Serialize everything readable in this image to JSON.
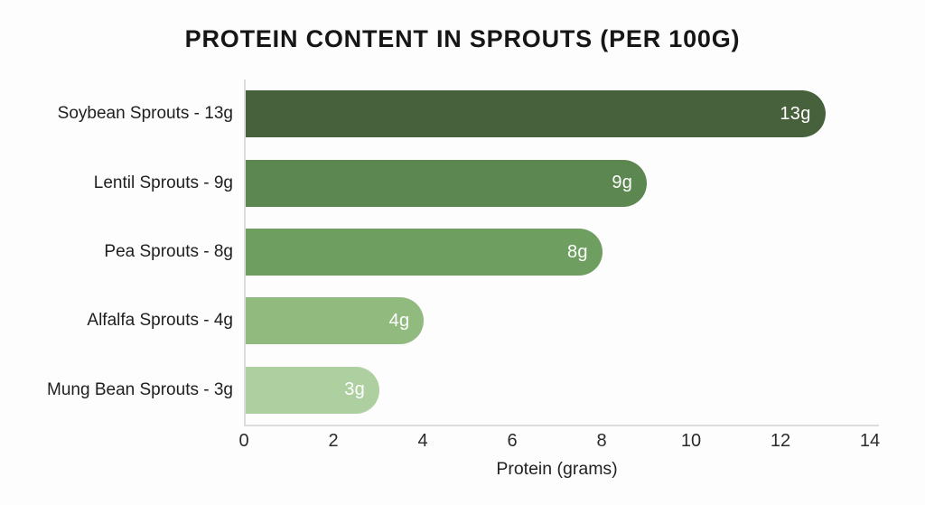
{
  "page": {
    "background": "#fdfdfd"
  },
  "chart_data": {
    "type": "bar",
    "orientation": "horizontal",
    "title": "PROTEIN CONTENT IN SPROUTS (PER 100G)",
    "xlabel": "Protein (grams)",
    "xlim": [
      0,
      14
    ],
    "xticks": [
      "0",
      "2",
      "4",
      "6",
      "8",
      "10",
      "12",
      "14"
    ],
    "xtick_values": [
      0,
      2,
      4,
      6,
      8,
      10,
      12,
      14
    ],
    "grid": false,
    "legend": "none",
    "categories": [
      "Soybean Sprouts - 13g",
      "Lentil Sprouts - 9g",
      "Pea Sprouts - 8g",
      "Alfalfa Sprouts - 4g",
      "Mung Bean Sprouts - 3g"
    ],
    "values": [
      13,
      9,
      8,
      4,
      3
    ],
    "bar_value_labels": [
      "13g",
      "9g",
      "8g",
      "4g",
      "3g"
    ],
    "bar_colors": [
      "#47613c",
      "#5d8750",
      "#6f9e61",
      "#91ba7f",
      "#aecf9f"
    ],
    "value_label_color": "#ffffff",
    "axis_line_color": "#dcdcdc",
    "title_color": "#161616",
    "text_color": "#1f1f1f"
  }
}
